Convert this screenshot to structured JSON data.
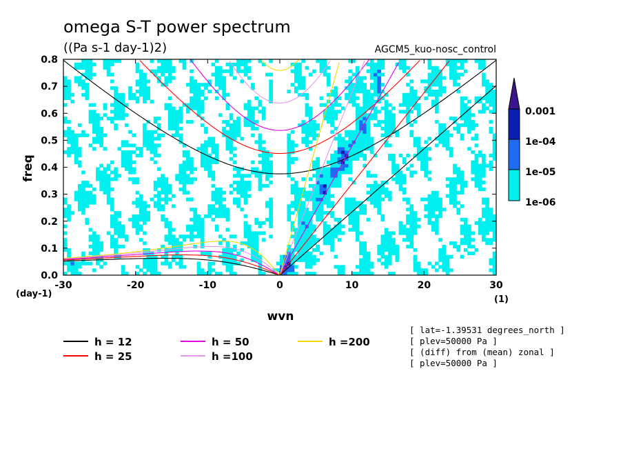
{
  "chart_data": {
    "type": "heatmap",
    "title": "omega S-T power spectrum",
    "units": "((Pa s-1 day-1)2)",
    "run_name": "AGCM5_kuo-nosc_control",
    "xlabel": "wvn",
    "ylabel": "freq",
    "x_unit": "(1)",
    "y_unit": "(day-1)",
    "xlim": [
      -30,
      30
    ],
    "ylim": [
      0,
      0.8
    ],
    "x_ticks": [
      "-30",
      "-20",
      "-10",
      "0",
      "10",
      "20",
      "30"
    ],
    "y_ticks": [
      "0.0",
      "0.1",
      "0.2",
      "0.3",
      "0.4",
      "0.5",
      "0.6",
      "0.7",
      "0.8"
    ],
    "colorbar": {
      "levels": [
        "1e-06",
        "1e-05",
        "1e-04",
        "0.001"
      ],
      "colors": [
        "#00f0f0",
        "#1e6cf0",
        "#0a1eb4",
        "#3c148c"
      ]
    },
    "dispersion_curves": [
      {
        "label": "h = 12",
        "h": 12,
        "color": "#000000"
      },
      {
        "label": "h = 25",
        "h": 25,
        "color": "#ff0000"
      },
      {
        "label": "h = 50",
        "h": 50,
        "color": "#e000e0"
      },
      {
        "label": "h =100",
        "h": 100,
        "color": "#e896e8"
      },
      {
        "label": "h =200",
        "h": 200,
        "color": "#f0d800"
      }
    ],
    "info_lines": [
      "[ lat=-1.39531 degrees_north ]",
      "[ plev=50000 Pa ]",
      "[ (diff) from (mean) zonal ]",
      "[ plev=50000 Pa ]"
    ]
  }
}
